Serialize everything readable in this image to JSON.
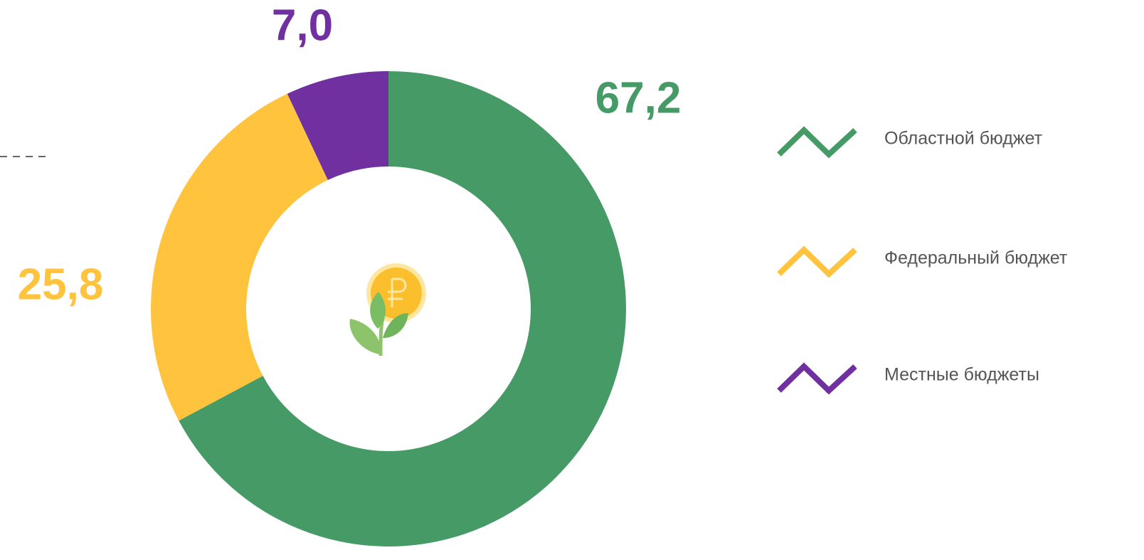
{
  "chart_data": {
    "type": "donut",
    "categories": [
      "Областной бюджет",
      "Федеральный бюджет",
      "Местные бюджеты"
    ],
    "values": [
      67.2,
      25.8,
      7.0
    ],
    "value_labels": [
      "67,2",
      "25,8",
      "7,0"
    ],
    "colors": [
      "#469a66",
      "#ffc33e",
      "#7030a0"
    ]
  }
}
